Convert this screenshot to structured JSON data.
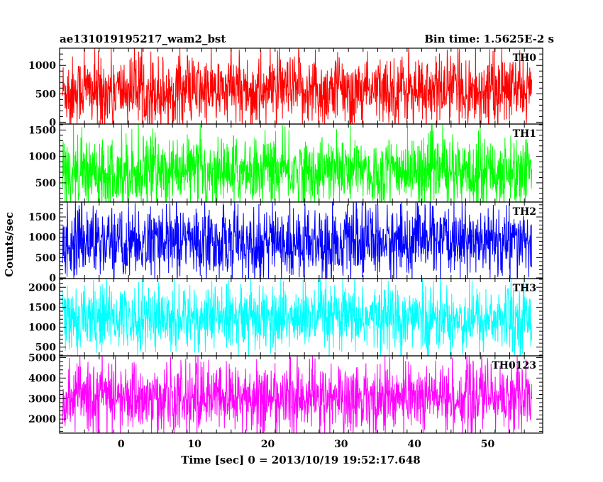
{
  "header": {
    "left_title": "ae131019195217_wam2_bst",
    "right_title": "Bin time: 1.5625E-2 s"
  },
  "chart_data": {
    "type": "line",
    "title": "ae131019195217_wam2_bst",
    "subtitle": "Bin time: 1.5625E-2 s",
    "xlabel": "Time [sec] 0 = 2013/10/19 19:52:17.648",
    "ylabel": "Counts/sec",
    "xlim": [
      -8.4,
      57.5
    ],
    "x_ticks": [
      0,
      10,
      20,
      30,
      40,
      50
    ],
    "x_range_data": [
      -8.0,
      56.0
    ],
    "grid": false,
    "legend": "none",
    "panels": [
      {
        "name": "TH0",
        "color": "#ff0000",
        "ylim": [
          -20,
          1290
        ],
        "y_ticks": [
          0,
          500,
          1000
        ],
        "y_tick_labels": [
          "0",
          "500",
          "1000"
        ],
        "mean": 560,
        "envelope_low": 100,
        "envelope_high": 1100
      },
      {
        "name": "TH1",
        "color": "#00ff00",
        "ylim": [
          150,
          1600
        ],
        "y_ticks": [
          500,
          1000,
          1500
        ],
        "y_tick_labels": [
          "500",
          "1000",
          "1500"
        ],
        "mean": 720,
        "envelope_low": 250,
        "envelope_high": 1300
      },
      {
        "name": "TH2",
        "color": "#0000ff",
        "ylim": [
          0,
          1850
        ],
        "y_ticks": [
          0,
          500,
          1000,
          1500
        ],
        "y_tick_labels": [
          "0",
          "500",
          "1000",
          "1500"
        ],
        "mean": 880,
        "envelope_low": 200,
        "envelope_high": 1600
      },
      {
        "name": "TH3",
        "color": "#00ffff",
        "ylim": [
          300,
          2200
        ],
        "y_ticks": [
          500,
          1000,
          1500,
          2000
        ],
        "y_tick_labels": [
          "500",
          "1000",
          "1500",
          "2000"
        ],
        "mean": 1220,
        "envelope_low": 550,
        "envelope_high": 1900
      },
      {
        "name": "TH0123",
        "color": "#ff00ff",
        "ylim": [
          1350,
          5050
        ],
        "y_ticks": [
          2000,
          3000,
          4000,
          5000
        ],
        "y_tick_labels": [
          "2000",
          "3000",
          "4000",
          "5000"
        ],
        "mean": 3050,
        "envelope_low": 1700,
        "envelope_high": 4400
      }
    ]
  }
}
